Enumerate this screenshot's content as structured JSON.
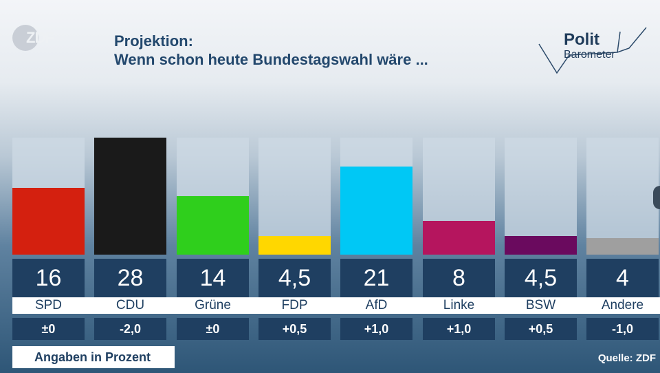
{
  "logo": {
    "text": "ZDF"
  },
  "header": {
    "line1": "Projektion:",
    "line2": "Wenn schon heute Bundestagswahl wäre ..."
  },
  "brand": {
    "line1": "Polit",
    "line2": "Barometer"
  },
  "chart_data": {
    "type": "bar",
    "categories": [
      "SPD",
      "CDU",
      "Grüne",
      "FDP",
      "AfD",
      "Linke",
      "BSW",
      "Andere"
    ],
    "values": [
      16,
      28,
      14,
      4.5,
      21,
      8,
      4.5,
      4
    ],
    "value_labels": [
      "16",
      "28",
      "14",
      "4,5",
      "21",
      "8",
      "4,5",
      "4"
    ],
    "changes": [
      "±0",
      "-2,0",
      "±0",
      "+0,5",
      "+1,0",
      "+1,0",
      "+0,5",
      "-1,0"
    ],
    "colors": [
      "#d4200f",
      "#1a1a1a",
      "#2fcf1c",
      "#ffd700",
      "#00c8f5",
      "#b5155e",
      "#6a0a5e",
      "#9f9f9f"
    ],
    "ylim": [
      0,
      28
    ],
    "grid": false,
    "legend": "none"
  },
  "footer": {
    "note": "Angaben in Prozent",
    "source": "Quelle: ZDF"
  }
}
